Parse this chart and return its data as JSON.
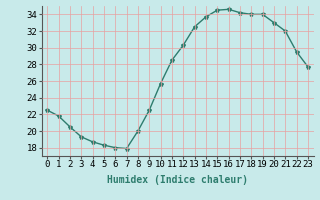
{
  "x": [
    0,
    1,
    2,
    3,
    4,
    5,
    6,
    7,
    8,
    9,
    10,
    11,
    12,
    13,
    14,
    15,
    16,
    17,
    18,
    19,
    20,
    21,
    22,
    23
  ],
  "y": [
    22.5,
    21.8,
    20.5,
    19.3,
    18.7,
    18.3,
    18.0,
    17.9,
    20.0,
    22.5,
    25.7,
    28.5,
    30.3,
    32.5,
    33.7,
    34.5,
    34.6,
    34.2,
    34.0,
    34.0,
    33.0,
    32.0,
    29.5,
    27.7
  ],
  "line_color": "#2e7d6e",
  "marker": "*",
  "marker_size": 3,
  "bg_color": "#c8eaea",
  "grid_color": "#e8a0a0",
  "xlabel": "Humidex (Indice chaleur)",
  "ylim": [
    17,
    35
  ],
  "xlim": [
    -0.5,
    23.5
  ],
  "yticks": [
    18,
    20,
    22,
    24,
    26,
    28,
    30,
    32,
    34
  ],
  "xticks": [
    0,
    1,
    2,
    3,
    4,
    5,
    6,
    7,
    8,
    9,
    10,
    11,
    12,
    13,
    14,
    15,
    16,
    17,
    18,
    19,
    20,
    21,
    22,
    23
  ],
  "xlabel_fontsize": 7,
  "tick_fontsize": 6.5
}
